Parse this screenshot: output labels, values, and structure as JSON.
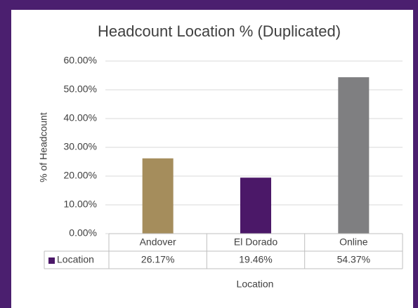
{
  "chart_data": {
    "type": "bar",
    "title": "Headcount Location % (Duplicated)",
    "x_label": "Location",
    "y_label": "% of Headcount",
    "categories": [
      "Andover",
      "El Dorado",
      "Online"
    ],
    "series": [
      {
        "name": "Location",
        "colors": [
          "#a58d5c",
          "#4b1868",
          "#7f7f81"
        ],
        "legend_color": "#4b1868",
        "values": [
          26.17,
          19.46,
          54.37
        ],
        "value_labels": [
          "26.17%",
          "19.46%",
          "54.37%"
        ]
      }
    ],
    "ylim": [
      0,
      60
    ],
    "yticks": [
      {
        "value": 0,
        "label": "0.00%"
      },
      {
        "value": 10,
        "label": "10.00%"
      },
      {
        "value": 20,
        "label": "20.00%"
      },
      {
        "value": 30,
        "label": "30.00%"
      },
      {
        "value": 40,
        "label": "40.00%"
      },
      {
        "value": 50,
        "label": "50.00%"
      },
      {
        "value": 60,
        "label": "60.00%"
      }
    ],
    "grid": true,
    "data_table": true
  }
}
